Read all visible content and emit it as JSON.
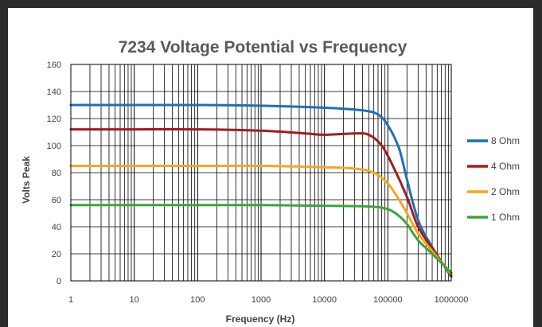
{
  "chart_data": {
    "type": "line",
    "title": "7234 Voltage Potential vs Frequency",
    "xlabel": "Frequency (Hz)",
    "ylabel": "Volts Peak",
    "x_scale": "log",
    "xlim": [
      1,
      1000000
    ],
    "ylim": [
      0,
      160
    ],
    "y_ticks": [
      "0",
      "20",
      "40",
      "60",
      "80",
      "100",
      "120",
      "140",
      "160"
    ],
    "x_ticks": [
      "1",
      "10",
      "100",
      "1000",
      "10000",
      "100000",
      "1000000"
    ],
    "grid": true,
    "legend_position": "right",
    "series": [
      {
        "name": "8 Ohm",
        "color": "#1f6fb4",
        "x": [
          1,
          10,
          100,
          1000,
          10000,
          40000,
          70000,
          100000,
          150000,
          200000,
          300000,
          500000,
          1000000
        ],
        "y": [
          130,
          130,
          130,
          129.5,
          128,
          126,
          123,
          115,
          98,
          75,
          45,
          25,
          3
        ]
      },
      {
        "name": "4 Ohm",
        "color": "#a31c1c",
        "x": [
          1,
          10,
          100,
          1000,
          5000,
          10000,
          30000,
          50000,
          80000,
          120000,
          200000,
          300000,
          500000,
          1000000
        ],
        "y": [
          112,
          112,
          112,
          111,
          109,
          108,
          109,
          108,
          100,
          85,
          62,
          40,
          24,
          4
        ]
      },
      {
        "name": "2 Ohm",
        "color": "#f5a81c",
        "x": [
          1,
          10,
          100,
          1000,
          10000,
          30000,
          60000,
          100000,
          150000,
          200000,
          300000,
          500000,
          1000000
        ],
        "y": [
          85,
          85,
          85,
          85,
          84,
          83,
          80,
          72,
          60,
          50,
          35,
          22,
          5
        ]
      },
      {
        "name": "1 Ohm",
        "color": "#3aa63a",
        "x": [
          1,
          10,
          100,
          1000,
          10000,
          50000,
          100000,
          150000,
          200000,
          300000,
          500000,
          1000000
        ],
        "y": [
          56,
          56,
          56,
          56,
          55.5,
          55,
          53,
          48,
          42,
          30,
          20,
          6
        ]
      }
    ]
  }
}
